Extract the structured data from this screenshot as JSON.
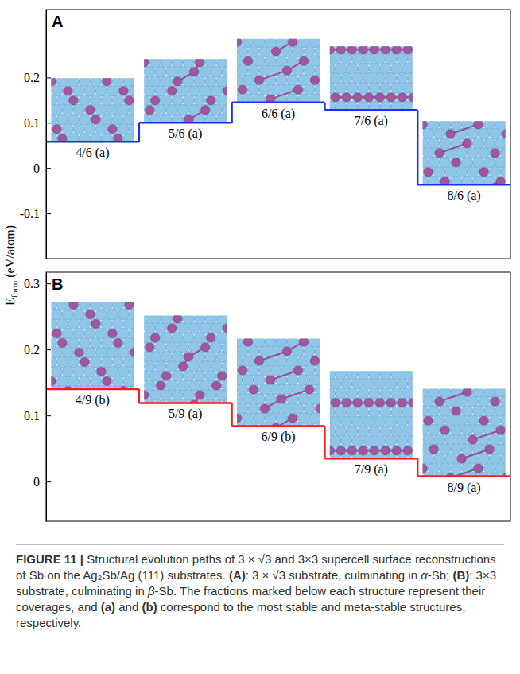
{
  "chart_data": [
    {
      "type": "step",
      "panel": "A",
      "color": "#1a2eff",
      "categories": [
        "4/6 (a)",
        "5/6 (a)",
        "6/6 (a)",
        "7/6 (a)",
        "8/6 (a)"
      ],
      "values": [
        0.058,
        0.1,
        0.145,
        0.128,
        -0.037
      ],
      "ylim": [
        -0.2,
        0.35
      ],
      "yticks": [
        -0.1,
        0,
        0.1,
        0.2
      ],
      "grid": false
    },
    {
      "type": "step",
      "panel": "B",
      "color": "#ff1a1a",
      "categories": [
        "4/9 (b)",
        "5/9 (a)",
        "6/9 (b)",
        "7/9 (a)",
        "8/9 (a)"
      ],
      "values": [
        0.14,
        0.119,
        0.084,
        0.035,
        0.008
      ],
      "ylim": [
        -0.06,
        0.317
      ],
      "yticks": [
        0,
        0.1,
        0.2,
        0.3
      ],
      "grid": false
    }
  ],
  "y_label": [
    "E",
    "form",
    " (eV/atom)"
  ],
  "caption": [
    "FIGURE 11 |",
    " Structural evolution paths of 3 × √3 and 3×3 supercell surface reconstructions of Sb on the Ag₂Sb/Ag (111) substrates. ",
    "(A)",
    ": 3 × √3 substrate, culminating in ",
    "α",
    "-Sb; ",
    "(B)",
    ": 3×3 substrate, culminating in ",
    "β",
    "-Sb. The fractions marked below each structure represent their coverages, and ",
    "(a)",
    " and ",
    "(b)",
    " correspond to the most stable and meta-stable structures, respectively."
  ]
}
